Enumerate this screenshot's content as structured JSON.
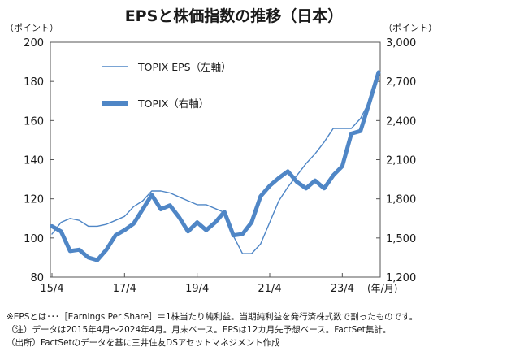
{
  "chart_data": {
    "type": "line",
    "title": "EPSと株価指数の推移（日本）",
    "y_left_unit": "（ポイント）",
    "y_right_unit": "（ポイント）",
    "x_unit": "(年/月)",
    "x_tick_labels": [
      "15/4",
      "17/4",
      "19/4",
      "21/4",
      "23/4"
    ],
    "y_left_ticks": [
      "200",
      "180",
      "160",
      "140",
      "120",
      "100",
      "80"
    ],
    "y_right_ticks": [
      "3,000",
      "2,700",
      "2,400",
      "2,100",
      "1,800",
      "1,500",
      "1,200"
    ],
    "ylim_left": [
      80,
      200
    ],
    "ylim_right": [
      1200,
      3000
    ],
    "legend_placement": "top-left",
    "grid": false,
    "x": [
      "2015-04",
      "2015-07",
      "2015-10",
      "2016-01",
      "2016-04",
      "2016-07",
      "2016-10",
      "2017-01",
      "2017-04",
      "2017-07",
      "2017-10",
      "2018-01",
      "2018-04",
      "2018-07",
      "2018-10",
      "2019-01",
      "2019-04",
      "2019-07",
      "2019-10",
      "2020-01",
      "2020-04",
      "2020-07",
      "2020-10",
      "2021-01",
      "2021-04",
      "2021-07",
      "2021-10",
      "2022-01",
      "2022-04",
      "2022-07",
      "2022-10",
      "2023-01",
      "2023-04",
      "2023-07",
      "2023-10",
      "2024-01",
      "2024-04"
    ],
    "series": [
      {
        "name": "TOPIX EPS（左軸）",
        "axis": "left",
        "color": "#4f86c6",
        "values": [
          102,
          108,
          110,
          109,
          106,
          106,
          107,
          109,
          111,
          116,
          119,
          124,
          124,
          123,
          121,
          119,
          117,
          117,
          115,
          113,
          101,
          92,
          92,
          97,
          108,
          119,
          126,
          132,
          138,
          143,
          149,
          156,
          156,
          156,
          161,
          170,
          182
        ]
      },
      {
        "name": "TOPIX（右軸）",
        "axis": "right",
        "color": "#4f86c6",
        "values": [
          1590,
          1550,
          1400,
          1410,
          1350,
          1330,
          1410,
          1520,
          1560,
          1610,
          1720,
          1830,
          1720,
          1750,
          1660,
          1550,
          1620,
          1560,
          1620,
          1700,
          1520,
          1530,
          1620,
          1820,
          1900,
          1960,
          2010,
          1930,
          1880,
          1940,
          1880,
          1980,
          2050,
          2300,
          2320,
          2540,
          2770
        ]
      }
    ]
  },
  "notes": [
    "※EPSとは･･･［Earnings Per Share］＝1株当たり純利益。当期純利益を発行済株式数で割ったものです。",
    "（注）データは2015年4月～2024年4月。月末ベース。EPSは12カ月先予想ベース。FactSet集計。",
    "（出所）FactSetのデータを基に三井住友DSアセットマネジメント作成"
  ]
}
